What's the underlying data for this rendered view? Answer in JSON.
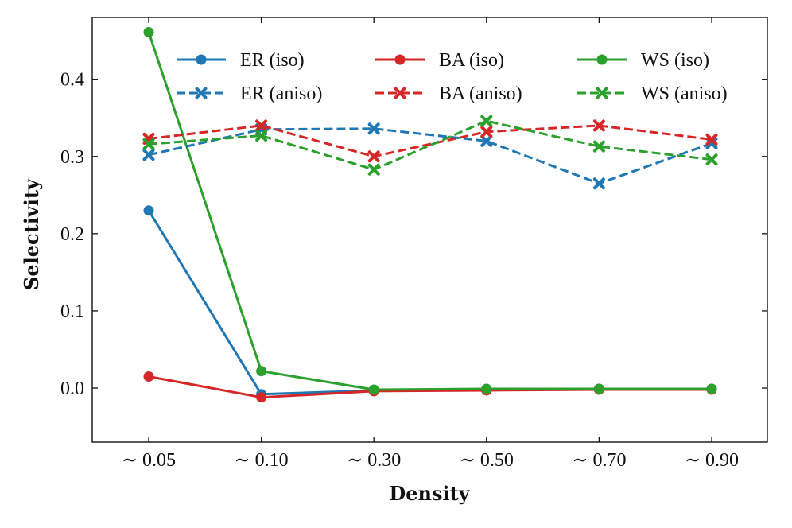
{
  "chart_data": {
    "type": "line",
    "title": "",
    "xlabel": "Density",
    "ylabel": "Selectivity",
    "categories": [
      "∼ 0.05",
      "∼ 0.10",
      "∼ 0.30",
      "∼ 0.50",
      "∼ 0.70",
      "∼ 0.90"
    ],
    "ylim": [
      -0.07,
      0.48
    ],
    "yticks": [
      0.0,
      0.1,
      0.2,
      0.3,
      0.4
    ],
    "ytick_labels": [
      "0.0",
      "0.1",
      "0.2",
      "0.3",
      "0.4"
    ],
    "grid": false,
    "legend_position": "top",
    "series": [
      {
        "name": "ER (iso)",
        "color": "#1f77b4",
        "style": "solid",
        "marker": "circle",
        "values": [
          0.23,
          -0.008,
          -0.003,
          -0.002,
          -0.001,
          -0.001
        ]
      },
      {
        "name": "BA (iso)",
        "color": "#d62728",
        "style": "solid",
        "marker": "circle",
        "values": [
          0.015,
          -0.012,
          -0.004,
          -0.003,
          -0.002,
          -0.002
        ]
      },
      {
        "name": "WS (iso)",
        "color": "#2ca02c",
        "style": "solid",
        "marker": "circle",
        "values": [
          0.461,
          0.022,
          -0.002,
          -0.001,
          -0.001,
          -0.001
        ]
      },
      {
        "name": "ER (aniso)",
        "color": "#1f77b4",
        "style": "dashed",
        "marker": "x",
        "values": [
          0.302,
          0.335,
          0.336,
          0.32,
          0.265,
          0.317
        ]
      },
      {
        "name": "BA (aniso)",
        "color": "#d62728",
        "style": "dashed",
        "marker": "x",
        "values": [
          0.323,
          0.34,
          0.3,
          0.332,
          0.34,
          0.322
        ]
      },
      {
        "name": "WS (aniso)",
        "color": "#2ca02c",
        "style": "dashed",
        "marker": "x",
        "values": [
          0.316,
          0.327,
          0.283,
          0.346,
          0.313,
          0.296
        ]
      }
    ]
  }
}
